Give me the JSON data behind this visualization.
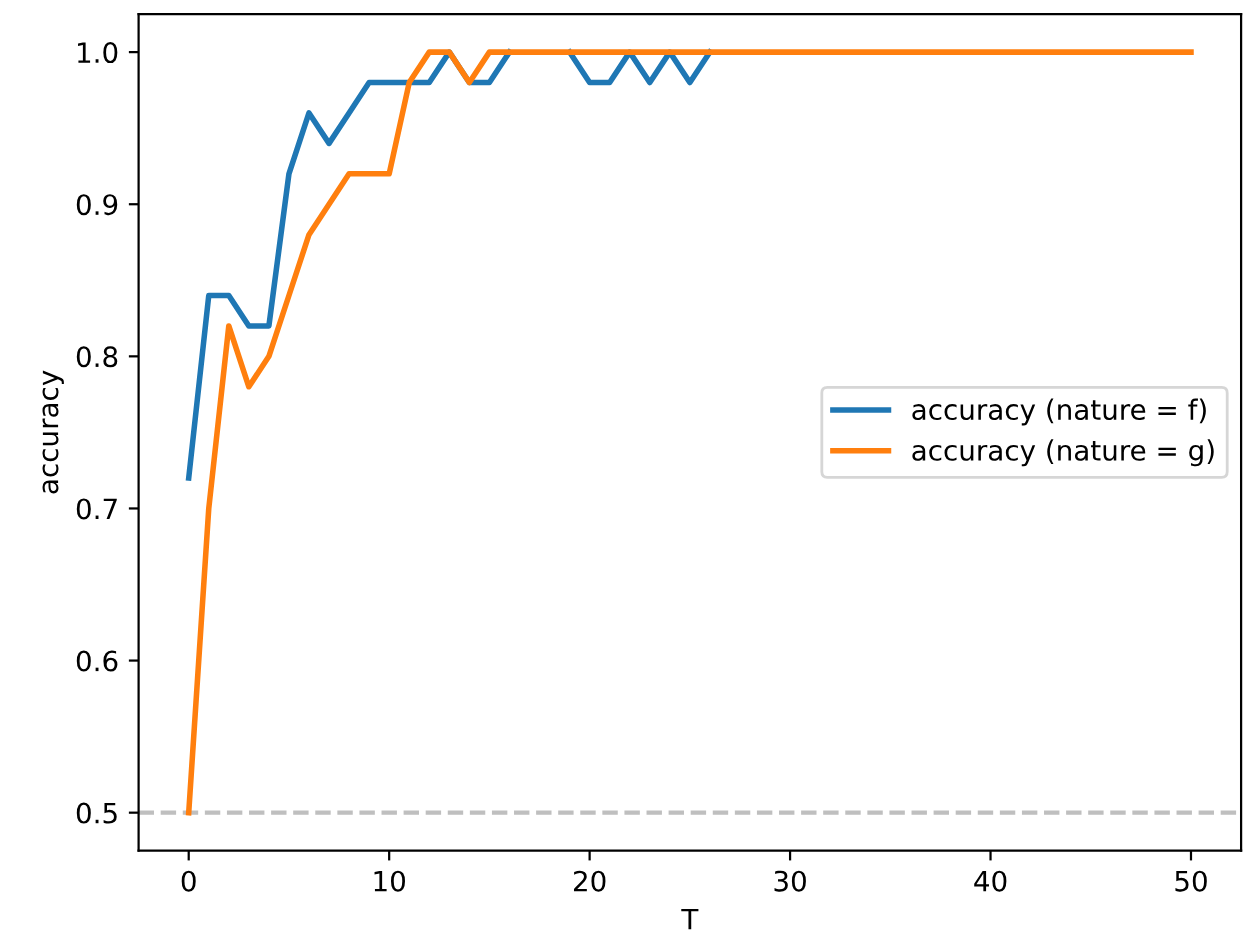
{
  "chart_data": {
    "type": "line",
    "xlabel": "T",
    "ylabel": "accuracy",
    "x": [
      0,
      1,
      2,
      3,
      4,
      5,
      6,
      7,
      8,
      9,
      10,
      11,
      12,
      13,
      14,
      15,
      16,
      17,
      18,
      19,
      20,
      21,
      22,
      23,
      24,
      25,
      26,
      27,
      28,
      29,
      30,
      31,
      32,
      33,
      34,
      35,
      36,
      37,
      38,
      39,
      40,
      41,
      42,
      43,
      44,
      45,
      46,
      47,
      48,
      49,
      50
    ],
    "series": [
      {
        "name": "accuracy (nature = f)",
        "color": "#1f77b4",
        "values": [
          0.72,
          0.84,
          0.84,
          0.82,
          0.82,
          0.92,
          0.96,
          0.94,
          0.96,
          0.98,
          0.98,
          0.98,
          0.98,
          1.0,
          0.98,
          0.98,
          1.0,
          null,
          null,
          1.0,
          0.98,
          0.98,
          1.0,
          0.98,
          1.0,
          0.98,
          1.0,
          null,
          null,
          null,
          null,
          null,
          null,
          null,
          null,
          null,
          null,
          null,
          null,
          null,
          null,
          null,
          null,
          null,
          null,
          null,
          null,
          null,
          null,
          null,
          null
        ]
      },
      {
        "name": "accuracy (nature = g)",
        "color": "#ff7f0e",
        "values": [
          0.5,
          0.7,
          0.82,
          0.78,
          0.8,
          0.84,
          0.88,
          0.9,
          0.92,
          0.92,
          0.92,
          0.98,
          1.0,
          1.0,
          0.98,
          1.0,
          1.0,
          1.0,
          1.0,
          1.0,
          1.0,
          1.0,
          1.0,
          1.0,
          1.0,
          1.0,
          1.0,
          1.0,
          1.0,
          1.0,
          1.0,
          1.0,
          1.0,
          1.0,
          1.0,
          1.0,
          1.0,
          1.0,
          1.0,
          1.0,
          1.0,
          1.0,
          1.0,
          1.0,
          1.0,
          1.0,
          1.0,
          1.0,
          1.0,
          1.0,
          1.0
        ]
      }
    ],
    "xlim": [
      -2.5,
      52.5
    ],
    "ylim": [
      0.475,
      1.025
    ],
    "xticks": [
      0,
      10,
      20,
      30,
      40,
      50
    ],
    "yticks": [
      {
        "value": 0.5,
        "label": "0.5"
      },
      {
        "value": 0.6,
        "label": "0.6"
      },
      {
        "value": 0.7,
        "label": "0.7"
      },
      {
        "value": 0.8,
        "label": "0.8"
      },
      {
        "value": 0.9,
        "label": "0.9"
      },
      {
        "value": 1.0,
        "label": "1.0"
      }
    ],
    "ref_lines": [
      {
        "axis": "y",
        "value": 0.5,
        "color": "#bfbfbf",
        "line_style": "dashed"
      }
    ],
    "legend": "center right",
    "grid": false,
    "marker": "none",
    "line_style": "solid"
  }
}
